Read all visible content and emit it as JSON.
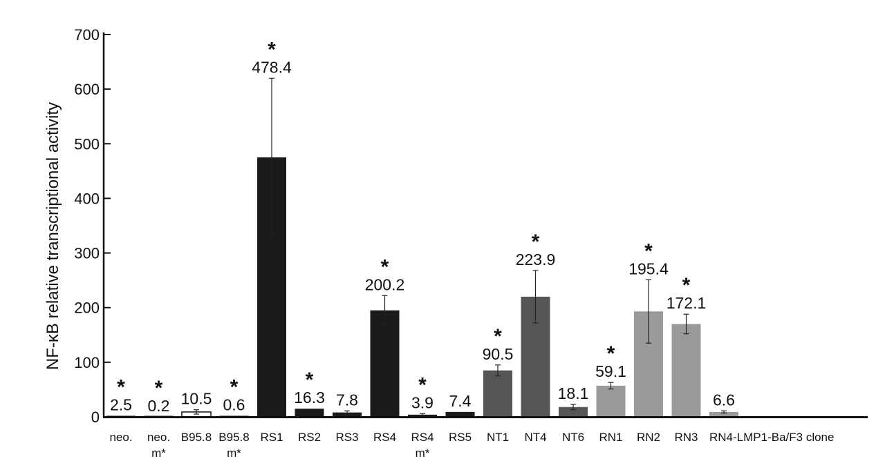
{
  "chart_data": {
    "type": "bar",
    "title": "",
    "xlabel": "",
    "ylabel": "NF-κB relative transcriptional activity",
    "ylim": [
      0,
      700
    ],
    "yticks": [
      0,
      100,
      200,
      300,
      400,
      500,
      600,
      700
    ],
    "grid": false,
    "legend": "none",
    "categories": [
      [
        "neo."
      ],
      [
        "neo.",
        "m*"
      ],
      [
        "B95.8"
      ],
      [
        "B95.8",
        "m*"
      ],
      [
        "RS1"
      ],
      [
        "RS2"
      ],
      [
        "RS3"
      ],
      [
        "RS4"
      ],
      [
        "RS4",
        "m*"
      ],
      [
        "RS5"
      ],
      [
        "NT1"
      ],
      [
        "NT4"
      ],
      [
        "NT6"
      ],
      [
        "RN1"
      ],
      [
        "RN2"
      ],
      [
        "RN3"
      ],
      [
        "RN4-LMP1-Ba/F3 clone"
      ]
    ],
    "values": [
      2.5,
      0.2,
      10.5,
      0.6,
      478.4,
      16.3,
      7.8,
      200.2,
      3.9,
      7.4,
      90.5,
      223.9,
      18.1,
      59.1,
      195.4,
      172.1,
      6.6
    ],
    "bar_tops": [
      2,
      0.2,
      9,
      2,
      475,
      15,
      8,
      195,
      4,
      9,
      85,
      220,
      18,
      57,
      193,
      170,
      9
    ],
    "value_labels": [
      "2.5",
      "0.2",
      "10.5",
      "0.6",
      "478.4",
      "16.3",
      "7.8",
      "200.2",
      "3.9",
      "7.4",
      "90.5",
      "223.9",
      "18.1",
      "59.1",
      "195.4",
      "172.1",
      "6.6"
    ],
    "errors": [
      0,
      0,
      4,
      0,
      145,
      0,
      3,
      27,
      2,
      0,
      10,
      48,
      5,
      6,
      58,
      18,
      2
    ],
    "significant": [
      true,
      true,
      false,
      true,
      true,
      true,
      false,
      true,
      true,
      false,
      true,
      true,
      false,
      true,
      true,
      true,
      false
    ],
    "significance_marker": "*",
    "colors": [
      "#1a1a1a",
      "#1a1a1a",
      "#ffffff",
      "#1a1a1a",
      "#1a1a1a",
      "#1a1a1a",
      "#1a1a1a",
      "#1a1a1a",
      "#1a1a1a",
      "#1a1a1a",
      "#555555",
      "#555555",
      "#555555",
      "#9a9a9a",
      "#9a9a9a",
      "#9a9a9a",
      "#9a9a9a"
    ]
  }
}
